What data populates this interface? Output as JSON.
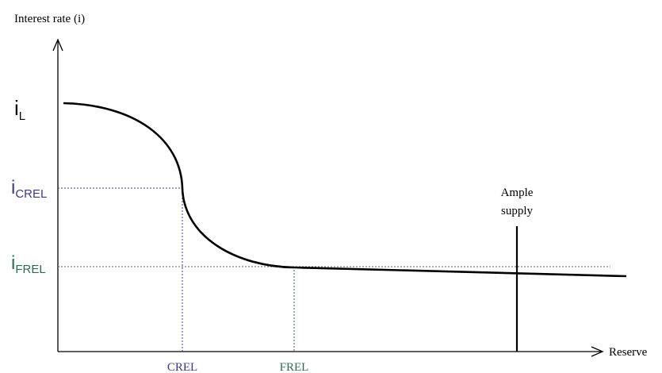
{
  "chart_data": {
    "type": "line",
    "ylabel": "Interest rate (i)",
    "xlabel": "Reserve",
    "y_ticks": [
      {
        "main": "i",
        "sub": "L",
        "color": "#000000"
      },
      {
        "main": "i",
        "sub": "CREL",
        "color": "#3a3a8c"
      },
      {
        "main": "i",
        "sub": "FREL",
        "color": "#2e6b4f"
      }
    ],
    "x_ticks": [
      {
        "label": "CREL",
        "color": "#3a3a8c"
      },
      {
        "label": "FREL",
        "color": "#2e6b4f"
      }
    ],
    "annotation": {
      "line1": "Ample",
      "line2": "supply"
    },
    "colors": {
      "curve": "#000000",
      "crel": "#3a3a8c",
      "frel": "#2e6b4f"
    }
  }
}
